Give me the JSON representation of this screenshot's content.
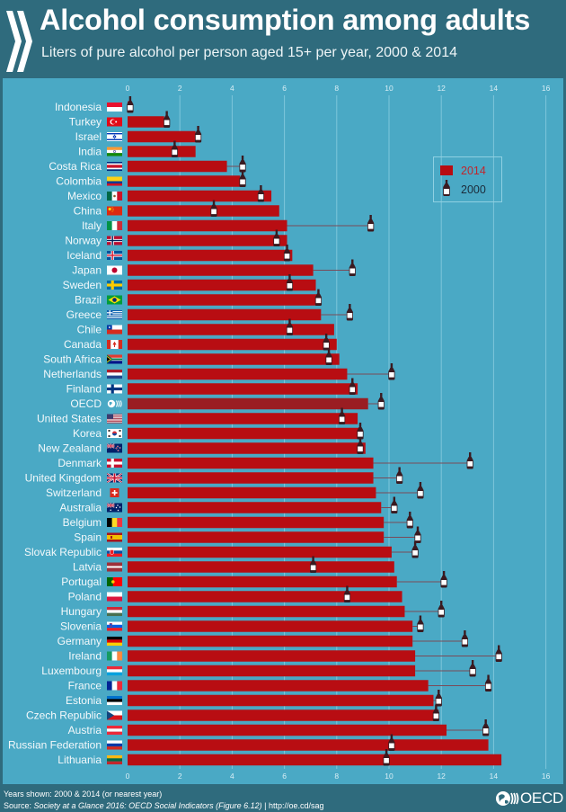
{
  "header": {
    "title": "Alcohol consumption among adults",
    "subtitle": "Liters of pure alcohol per person aged 15+ per year, 2000 & 2014"
  },
  "legend": {
    "series_2014": "2014",
    "series_2000": "2000"
  },
  "footer": {
    "years_note": "Years shown: 2000 & 2014 (or nearest year)",
    "source_label": "Source: ",
    "source_title": "Society at a Glance 2016: OECD Social Indicators (Figure 6.12)",
    "source_link": " | http://oe.cd/sag",
    "logo_text": "OECD"
  },
  "colors": {
    "background": "#2f6b7d",
    "panel": "#4aa9c5",
    "bar_2014": "#b80d12",
    "bar_highlight": "#9a1d22",
    "marker_2000": "#3a1a20",
    "connector": "#7a4a58",
    "gridline": "#8fd0e2"
  },
  "chart_data": {
    "type": "bar",
    "orientation": "horizontal",
    "title": "Alcohol consumption among adults",
    "subtitle": "Liters of pure alcohol per person aged 15+ per year, 2000 & 2014",
    "xlabel": "",
    "ylabel": "",
    "xlim": [
      0,
      16
    ],
    "ticks": [
      0,
      2,
      4,
      6,
      8,
      10,
      12,
      14,
      16
    ],
    "grid": true,
    "legend": {
      "position": "top-right",
      "entries": [
        "2014",
        "2000"
      ]
    },
    "highlight": "OECD",
    "categories": [
      "Indonesia",
      "Turkey",
      "Israel",
      "India",
      "Costa Rica",
      "Colombia",
      "Mexico",
      "China",
      "Italy",
      "Norway",
      "Iceland",
      "Japan",
      "Sweden",
      "Brazil",
      "Greece",
      "Chile",
      "Canada",
      "South Africa",
      "Netherlands",
      "Finland",
      "OECD",
      "United States",
      "Korea",
      "New Zealand",
      "Denmark",
      "United Kingdom",
      "Switzerland",
      "Australia",
      "Belgium",
      "Spain",
      "Slovak Republic",
      "Latvia",
      "Portugal",
      "Poland",
      "Hungary",
      "Slovenia",
      "Germany",
      "Ireland",
      "Luxembourg",
      "France",
      "Estonia",
      "Czech Republic",
      "Austria",
      "Russian Federation",
      "Lithuania"
    ],
    "series": [
      {
        "name": "2014",
        "mark": "bar",
        "values": [
          0.1,
          1.4,
          2.6,
          2.6,
          3.8,
          4.3,
          5.5,
          5.8,
          6.1,
          6.1,
          6.3,
          7.1,
          7.2,
          7.3,
          7.4,
          7.9,
          8.0,
          8.1,
          8.4,
          8.8,
          9.2,
          8.8,
          8.9,
          9.1,
          9.4,
          9.4,
          9.5,
          9.7,
          9.8,
          9.8,
          10.1,
          10.2,
          10.3,
          10.5,
          10.6,
          10.9,
          10.9,
          11.0,
          11.0,
          11.5,
          11.7,
          11.9,
          12.2,
          13.8,
          14.3
        ]
      },
      {
        "name": "2000",
        "mark": "bottle-marker",
        "values": [
          0.1,
          1.5,
          2.7,
          1.8,
          4.4,
          4.4,
          5.1,
          3.3,
          9.3,
          5.7,
          6.1,
          8.6,
          6.2,
          7.3,
          8.5,
          6.2,
          7.6,
          7.7,
          10.1,
          8.6,
          9.7,
          8.2,
          8.9,
          8.9,
          13.1,
          10.4,
          11.2,
          10.2,
          10.8,
          11.1,
          11.0,
          7.1,
          12.1,
          8.4,
          12.0,
          11.2,
          12.9,
          14.2,
          13.2,
          13.8,
          11.9,
          11.8,
          13.7,
          10.1,
          9.9
        ]
      }
    ]
  }
}
